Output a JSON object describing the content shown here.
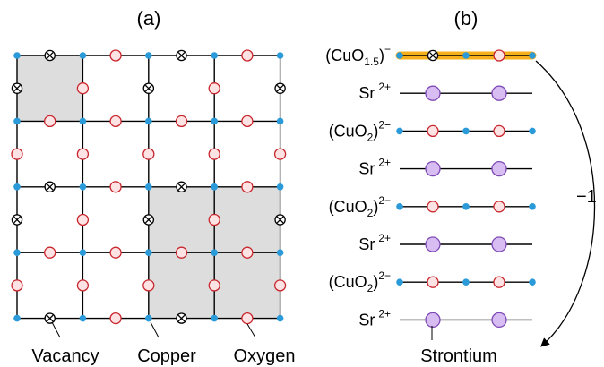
{
  "panel_a": {
    "label": "(a)",
    "legend": {
      "vacancy": "Vacancy",
      "copper": "Copper",
      "oxygen": "Oxygen"
    }
  },
  "panel_b": {
    "label": "(b)",
    "layers": [
      {
        "kind": "cu",
        "formula": "(CuO",
        "sub": "1.5",
        "sup": "−"
      },
      {
        "kind": "sr",
        "formula": "Sr",
        "sup": "2+"
      },
      {
        "kind": "cu",
        "formula": "(CuO",
        "sub": "2",
        "sup": "2−"
      },
      {
        "kind": "sr",
        "formula": "Sr",
        "sup": "2+"
      },
      {
        "kind": "cu",
        "formula": "(CuO",
        "sub": "2",
        "sup": "2−"
      },
      {
        "kind": "sr",
        "formula": "Sr",
        "sup": "2+"
      },
      {
        "kind": "cu",
        "formula": "(CuO",
        "sub": "2",
        "sup": "2−"
      },
      {
        "kind": "sr",
        "formula": "Sr",
        "sup": "2+"
      }
    ],
    "charge_label": "−1",
    "strontium_label": "Strontium"
  },
  "colors": {
    "copper": "#2a9ad8",
    "oxygen_fill": "#fde3e3",
    "oxygen_stroke": "#c8262d",
    "strontium_fill": "#d8bdf2",
    "strontium_stroke": "#7e4ab5",
    "shade": "#dddddd",
    "highlight": "#f5b01c"
  }
}
